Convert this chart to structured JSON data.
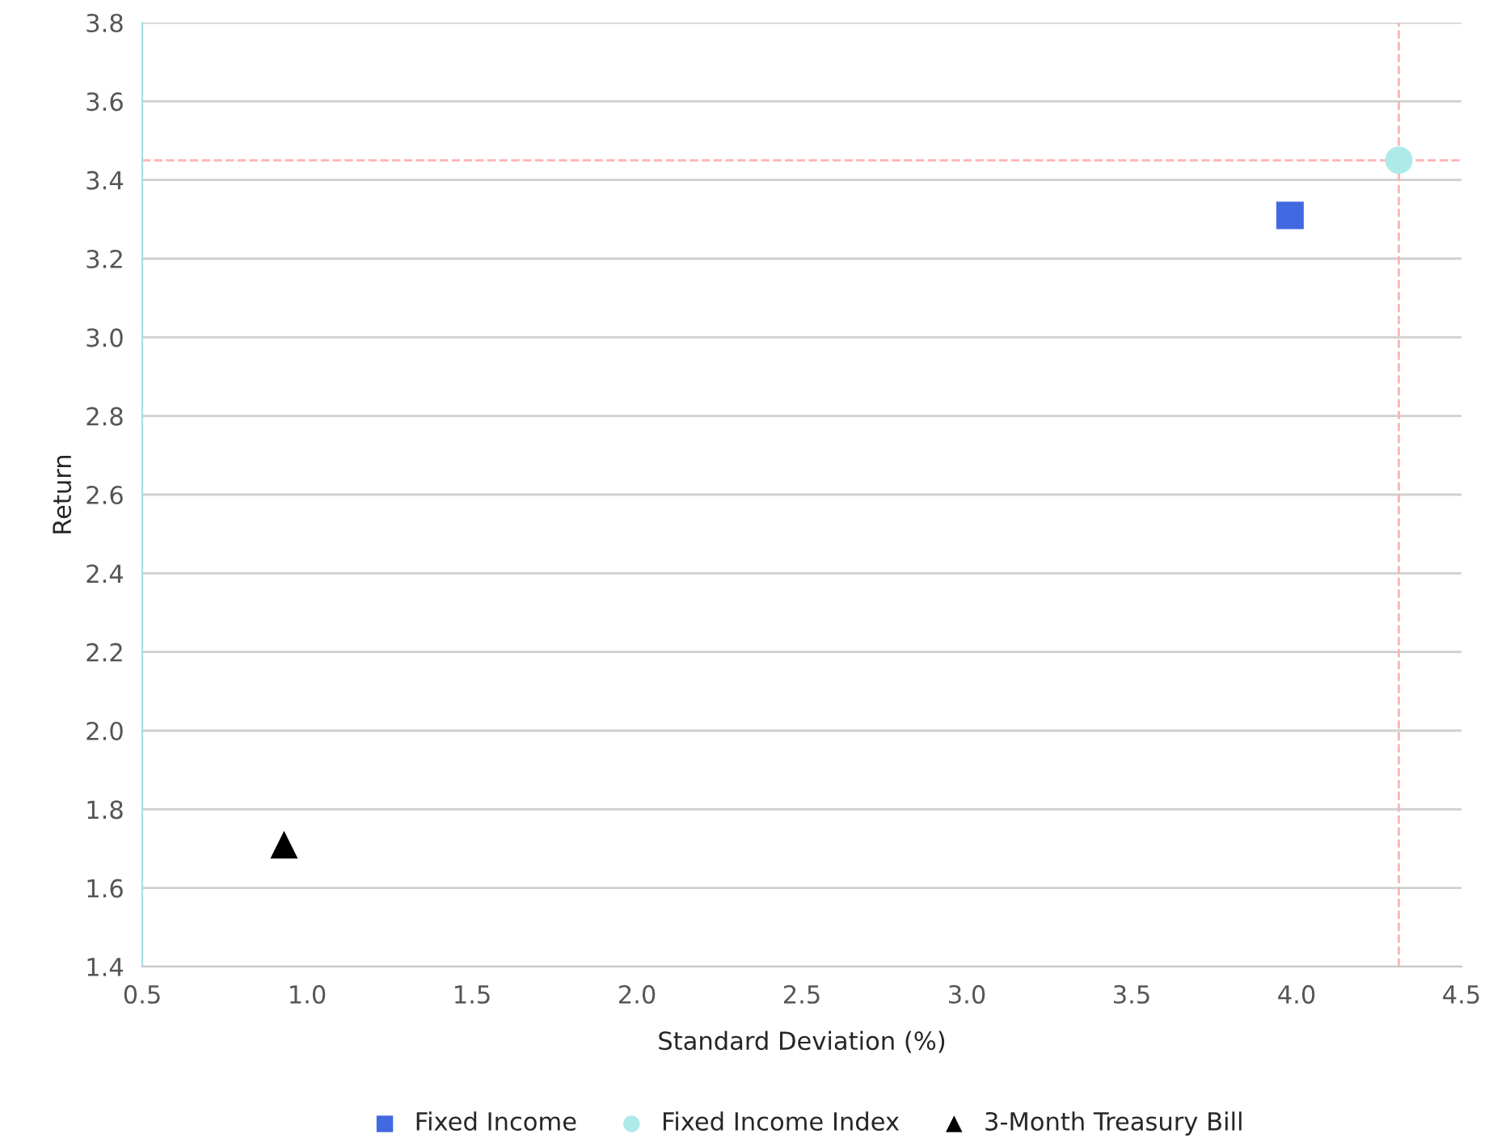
{
  "chart_data": {
    "type": "scatter",
    "xlabel": "Standard Deviation (%)",
    "ylabel": "Return",
    "series": [
      {
        "name": "Fixed Income",
        "color": "#4169e1",
        "marker": "square",
        "x": [
          3.98
        ],
        "values": [
          3.31
        ]
      },
      {
        "name": "Fixed Income Index",
        "color": "#aeeaea",
        "marker": "circle",
        "x": [
          4.31
        ],
        "values": [
          3.45
        ]
      },
      {
        "name": "3-Month Treasury Bill",
        "color": "#000000",
        "marker": "triangle",
        "x": [
          0.93
        ],
        "values": [
          1.71
        ]
      }
    ],
    "xlim": [
      0.5,
      4.5
    ],
    "xticks": [
      {
        "value": 0.5,
        "label": "0.5"
      },
      {
        "value": 1.0,
        "label": "1.0"
      },
      {
        "value": 1.5,
        "label": "1.5"
      },
      {
        "value": 2.0,
        "label": "2.0"
      },
      {
        "value": 2.5,
        "label": "2.5"
      },
      {
        "value": 3.0,
        "label": "3.0"
      },
      {
        "value": 3.5,
        "label": "3.5"
      },
      {
        "value": 4.0,
        "label": "4.0"
      },
      {
        "value": 4.5,
        "label": "4.5"
      }
    ],
    "ylim": [
      1.4,
      3.8
    ],
    "yticks": [
      {
        "value": 1.4,
        "label": "1.4"
      },
      {
        "value": 1.6,
        "label": "1.6"
      },
      {
        "value": 1.8,
        "label": "1.8"
      },
      {
        "value": 2.0,
        "label": "2.0"
      },
      {
        "value": 2.2,
        "label": "2.2"
      },
      {
        "value": 2.4,
        "label": "2.4"
      },
      {
        "value": 2.6,
        "label": "2.6"
      },
      {
        "value": 2.8,
        "label": "2.8"
      },
      {
        "value": 3.0,
        "label": "3.0"
      },
      {
        "value": 3.2,
        "label": "3.2"
      },
      {
        "value": 3.4,
        "label": "3.4"
      },
      {
        "value": 3.6,
        "label": "3.6"
      },
      {
        "value": 3.8,
        "label": "3.8"
      }
    ],
    "ref_lines": [
      {
        "axis": "x",
        "value": 4.31,
        "color": "#ffb3b3",
        "line_style": "dashed"
      },
      {
        "axis": "y",
        "value": 3.45,
        "color": "#ffb3b3",
        "line_style": "dashed"
      }
    ],
    "grid": "y",
    "legend": "bottom"
  }
}
